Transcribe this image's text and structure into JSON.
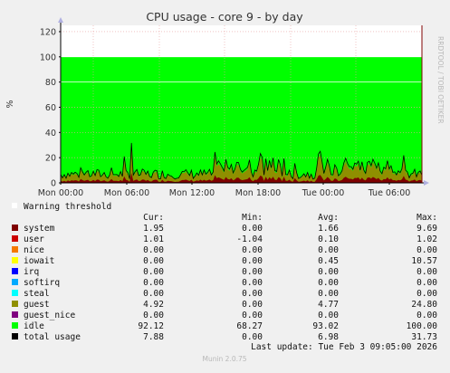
{
  "chart_data": {
    "type": "area",
    "title": "CPU usage - core 9 - by day",
    "ylabel": "%",
    "ylim": [
      0,
      125
    ],
    "y_ticks": [
      "0",
      "20",
      "40",
      "60",
      "80",
      "100",
      "120"
    ],
    "x_ticks": [
      "Mon 00:00",
      "Mon 06:00",
      "Mon 12:00",
      "Mon 18:00",
      "Tue 00:00",
      "Tue 06:00"
    ],
    "grid": true,
    "side_label": "RRDTOOL / TOBI OETIKER",
    "warning_label": "Warning threshold",
    "legend_headers": [
      "Cur:",
      "Min:",
      "Avg:",
      "Max:"
    ],
    "series": [
      {
        "name": "system",
        "color": "#7f0000",
        "cur": "1.95",
        "min": "0.00",
        "avg": "1.66",
        "max": "9.69"
      },
      {
        "name": "user",
        "color": "#cc0000",
        "cur": "1.01",
        "min": "-1.04",
        "avg": "0.10",
        "max": "1.02"
      },
      {
        "name": "nice",
        "color": "#f57900",
        "cur": "0.00",
        "min": "0.00",
        "avg": "0.00",
        "max": "0.00"
      },
      {
        "name": "iowait",
        "color": "#ffff00",
        "cur": "0.00",
        "min": "0.00",
        "avg": "0.45",
        "max": "10.57"
      },
      {
        "name": "irq",
        "color": "#0000ff",
        "cur": "0.00",
        "min": "0.00",
        "avg": "0.00",
        "max": "0.00"
      },
      {
        "name": "softirq",
        "color": "#00aaff",
        "cur": "0.00",
        "min": "0.00",
        "avg": "0.00",
        "max": "0.00"
      },
      {
        "name": "steal",
        "color": "#00ffff",
        "cur": "0.00",
        "min": "0.00",
        "avg": "0.00",
        "max": "0.00"
      },
      {
        "name": "guest",
        "color": "#8f8f00",
        "cur": "4.92",
        "min": "0.00",
        "avg": "4.77",
        "max": "24.80"
      },
      {
        "name": "guest_nice",
        "color": "#7f007f",
        "cur": "0.00",
        "min": "0.00",
        "avg": "0.00",
        "max": "0.00"
      },
      {
        "name": "idle",
        "color": "#00ff00",
        "cur": "92.12",
        "min": "68.27",
        "avg": "93.02",
        "max": "100.00"
      },
      {
        "name": "total usage",
        "color": "#000000",
        "cur": "7.88",
        "min": "0.00",
        "avg": "6.98",
        "max": "31.73"
      }
    ],
    "last_update": "Last update: Tue Feb  3 09:05:00 2026",
    "footer": "Munin 2.0.75"
  }
}
